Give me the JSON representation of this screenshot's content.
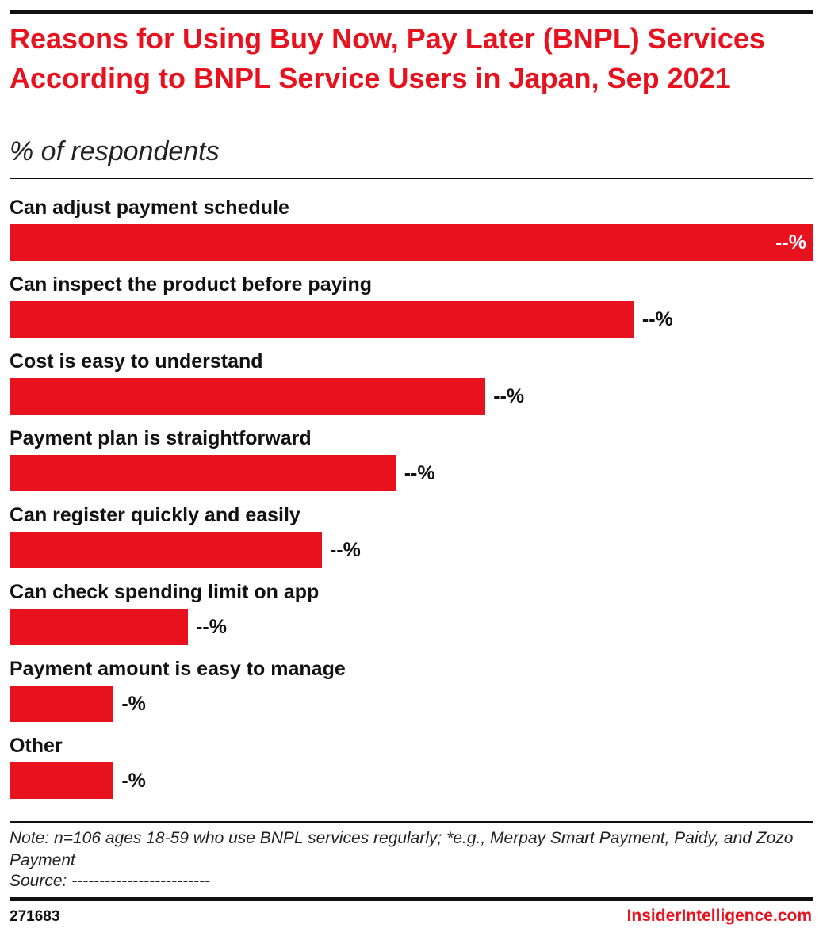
{
  "chart_data": {
    "type": "bar",
    "orientation": "horizontal",
    "title": "Reasons for Using Buy Now, Pay Later (BNPL) Services According to BNPL Service Users in Japan, Sep 2021",
    "subtitle": "% of respondents",
    "categories": [
      "Can adjust payment schedule",
      "Can inspect the product before paying",
      "Cost is easy to understand",
      "Payment plan is straightforward",
      "Can register quickly and easily",
      "Can check spending limit on app",
      "Payment amount is easy to manage",
      "Other"
    ],
    "values": [
      54,
      42,
      32,
      26,
      21,
      12,
      7,
      7
    ],
    "value_labels": [
      "--%",
      "--%",
      "--%",
      "--%",
      "--%",
      "--%",
      "-%",
      "-%"
    ],
    "color": "#e8111e",
    "note": "Note: n=106 ages 18-59 who use BNPL services regularly; *e.g., Merpay Smart Payment, Paidy, and Zozo Payment",
    "source": "Source: -------------------------",
    "chart_id": "271683",
    "brand": "InsiderIntelligence.com"
  }
}
